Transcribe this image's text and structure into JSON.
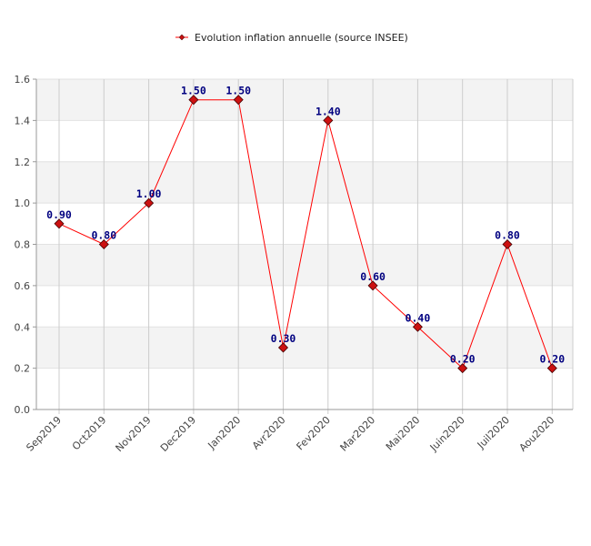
{
  "chart_data": {
    "type": "line",
    "title": "",
    "xlabel": "",
    "ylabel": "",
    "categories": [
      "Sep2019",
      "Oct2019",
      "Nov2019",
      "Dec2019",
      "Jan2020",
      "Avr2020",
      "Fev2020",
      "Mar2020",
      "Mai2020",
      "Juin2020",
      "Juil2020",
      "Aou2020"
    ],
    "series": [
      {
        "name": "Evolution inflation annuelle (source INSEE)",
        "values": [
          0.9,
          0.8,
          1.0,
          1.5,
          1.5,
          0.3,
          1.4,
          0.6,
          0.4,
          0.2,
          0.8,
          0.2
        ],
        "data_labels": [
          "0.90",
          "0.80",
          "1.00",
          "1.50",
          "1.50",
          "0.30",
          "1.40",
          "0.60",
          "0.40",
          "0.20",
          "0.80",
          "0.20"
        ],
        "color": "#ff0000",
        "marker_color": "#cc1111"
      }
    ],
    "ylim": [
      0,
      1.6
    ],
    "yticks": [
      "0.0",
      "0.2",
      "0.4",
      "0.6",
      "0.8",
      "1.0",
      "1.2",
      "1.4",
      "1.6"
    ],
    "grid": true,
    "legend_position": "top-center",
    "label_color": "#000080",
    "band_color": "#f3f3f3"
  }
}
